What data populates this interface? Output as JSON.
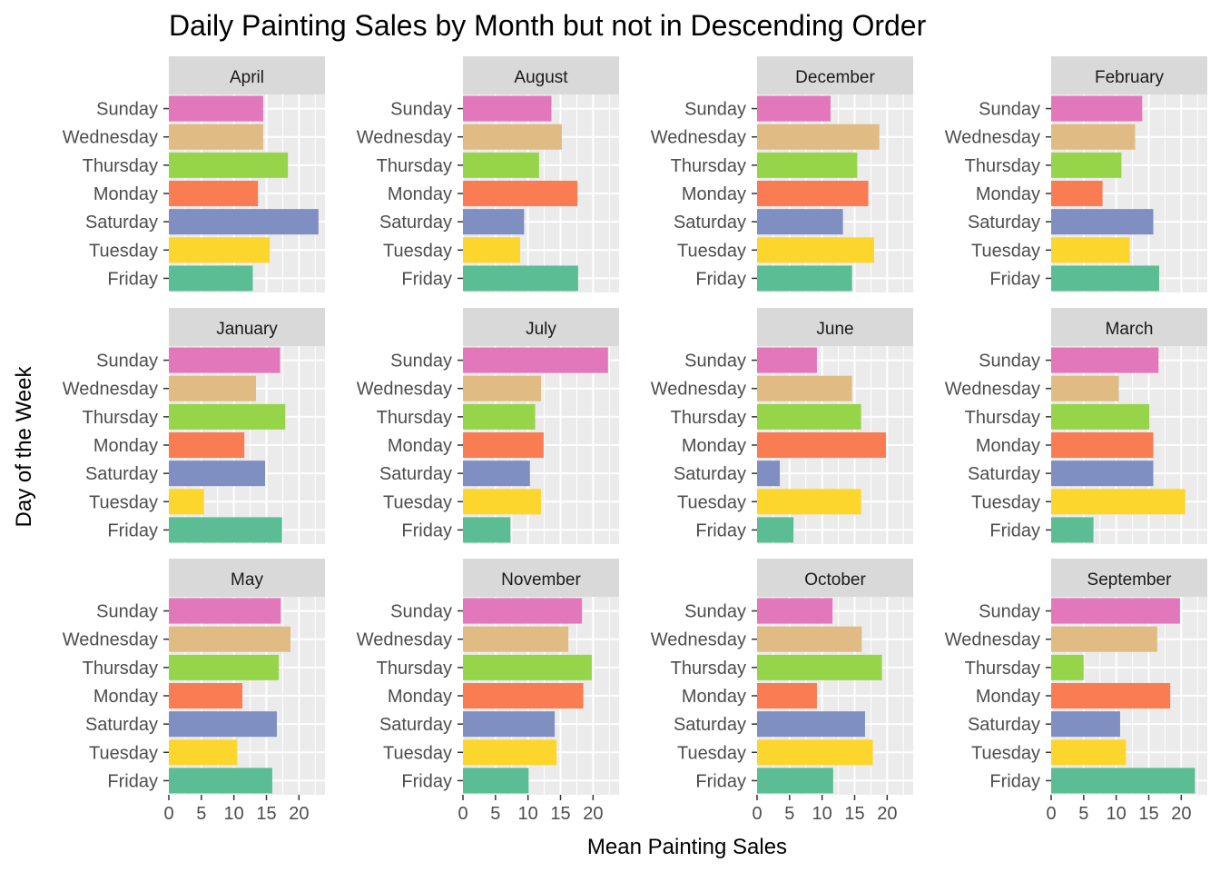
{
  "chart_data": {
    "type": "bar",
    "orientation": "horizontal",
    "faceted": true,
    "title": "Daily Painting Sales by Month but not in Descending Order",
    "xlabel": "Mean Painting Sales",
    "ylabel": "Day of the Week",
    "xlim": [
      0,
      24
    ],
    "xticks": [
      0,
      5,
      10,
      15,
      20
    ],
    "grid": true,
    "legend": "none",
    "categories": [
      "Sunday",
      "Wednesday",
      "Thursday",
      "Monday",
      "Saturday",
      "Tuesday",
      "Friday"
    ],
    "colors": {
      "Sunday": "#e377bc",
      "Wednesday": "#e0bb84",
      "Thursday": "#96d44a",
      "Monday": "#fa7c52",
      "Saturday": "#7f8fc1",
      "Tuesday": "#fdd62d",
      "Friday": "#5bbd93"
    },
    "panels": [
      {
        "label": "April",
        "values": [
          14.5,
          14.5,
          18.3,
          13.7,
          23.0,
          15.5,
          12.9
        ]
      },
      {
        "label": "August",
        "values": [
          13.6,
          15.2,
          11.7,
          17.6,
          9.4,
          8.8,
          17.7
        ]
      },
      {
        "label": "December",
        "values": [
          11.3,
          18.8,
          15.4,
          17.1,
          13.2,
          18.0,
          14.6
        ]
      },
      {
        "label": "February",
        "values": [
          14.0,
          12.9,
          10.8,
          7.9,
          15.7,
          12.1,
          16.6
        ]
      },
      {
        "label": "January",
        "values": [
          17.1,
          13.4,
          17.9,
          11.6,
          14.8,
          5.4,
          17.4
        ]
      },
      {
        "label": "July",
        "values": [
          22.3,
          12.0,
          11.1,
          12.4,
          10.3,
          12.0,
          7.3
        ]
      },
      {
        "label": "June",
        "values": [
          9.2,
          14.6,
          16.0,
          19.8,
          3.5,
          16.0,
          5.6
        ]
      },
      {
        "label": "March",
        "values": [
          16.5,
          10.4,
          15.1,
          15.7,
          15.7,
          20.6,
          6.5
        ]
      },
      {
        "label": "May",
        "values": [
          17.2,
          18.7,
          16.9,
          11.3,
          16.6,
          10.5,
          15.9
        ]
      },
      {
        "label": "November",
        "values": [
          18.3,
          16.2,
          19.8,
          18.5,
          14.1,
          14.4,
          10.1
        ]
      },
      {
        "label": "October",
        "values": [
          11.6,
          16.1,
          19.2,
          9.2,
          16.6,
          17.8,
          11.7
        ]
      },
      {
        "label": "September",
        "values": [
          19.8,
          16.3,
          5.0,
          18.3,
          10.6,
          11.5,
          22.1
        ]
      }
    ]
  }
}
